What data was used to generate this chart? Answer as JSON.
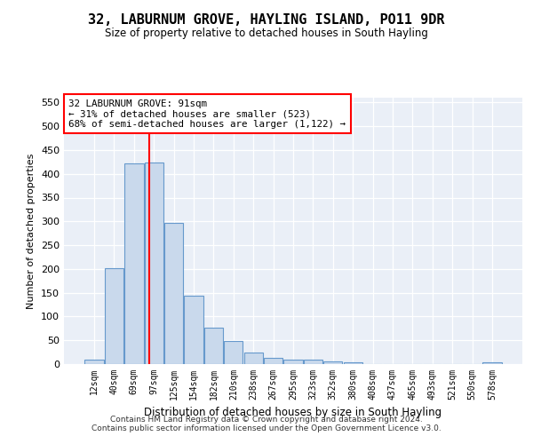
{
  "title": "32, LABURNUM GROVE, HAYLING ISLAND, PO11 9DR",
  "subtitle": "Size of property relative to detached houses in South Hayling",
  "xlabel": "Distribution of detached houses by size in South Hayling",
  "ylabel": "Number of detached properties",
  "categories": [
    "12sqm",
    "40sqm",
    "69sqm",
    "97sqm",
    "125sqm",
    "154sqm",
    "182sqm",
    "210sqm",
    "238sqm",
    "267sqm",
    "295sqm",
    "323sqm",
    "352sqm",
    "380sqm",
    "408sqm",
    "437sqm",
    "465sqm",
    "493sqm",
    "521sqm",
    "550sqm",
    "578sqm"
  ],
  "values": [
    9,
    201,
    421,
    423,
    297,
    144,
    77,
    48,
    25,
    13,
    10,
    10,
    5,
    3,
    0,
    0,
    0,
    0,
    0,
    0,
    4
  ],
  "bar_color": "#c9d9ec",
  "bar_edge_color": "#6699cc",
  "annotation_text_line1": "32 LABURNUM GROVE: 91sqm",
  "annotation_text_line2": "← 31% of detached houses are smaller (523)",
  "annotation_text_line3": "68% of semi-detached houses are larger (1,122) →",
  "ylim": [
    0,
    560
  ],
  "yticks": [
    0,
    50,
    100,
    150,
    200,
    250,
    300,
    350,
    400,
    450,
    500,
    550
  ],
  "background_color": "#eaeff7",
  "footer_line1": "Contains HM Land Registry data © Crown copyright and database right 2024.",
  "footer_line2": "Contains public sector information licensed under the Open Government Licence v3.0."
}
